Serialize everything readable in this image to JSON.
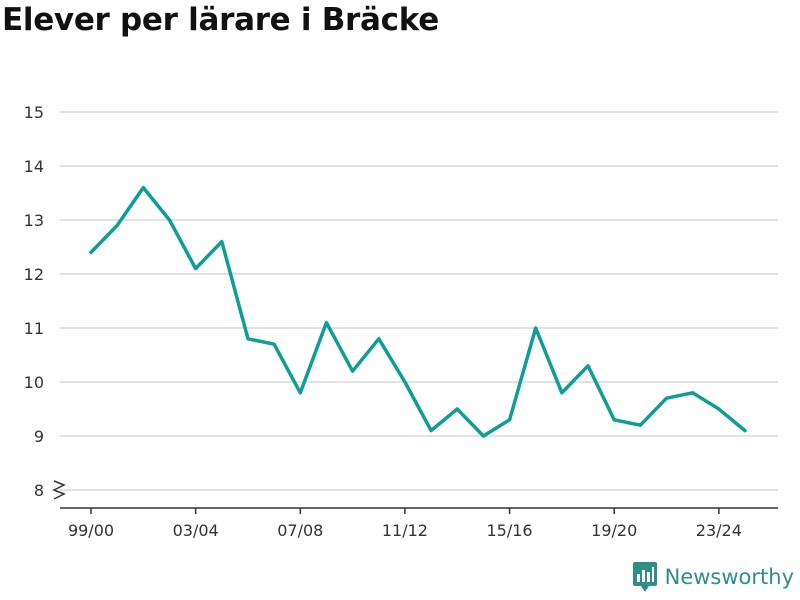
{
  "title": "Elever per lärare i Bräcke",
  "brand": {
    "name": "Newsworthy",
    "icon": "newsworthy-logo-icon",
    "color": "#2f8f86"
  },
  "chart_data": {
    "type": "line",
    "title": "Elever per lärare i Bräcke",
    "xlabel": "",
    "ylabel": "",
    "categories": [
      "99/00",
      "00/01",
      "01/02",
      "02/03",
      "03/04",
      "04/05",
      "05/06",
      "06/07",
      "07/08",
      "08/09",
      "09/10",
      "10/11",
      "11/12",
      "12/13",
      "13/14",
      "14/15",
      "15/16",
      "16/17",
      "17/18",
      "18/19",
      "19/20",
      "20/21",
      "21/22",
      "22/23",
      "23/24",
      "24/25"
    ],
    "x_tick_labels": [
      "99/00",
      "03/04",
      "07/08",
      "11/12",
      "15/16",
      "19/20",
      "23/24"
    ],
    "series": [
      {
        "values": [
          12.4,
          12.9,
          13.6,
          13.0,
          12.1,
          12.6,
          10.8,
          10.7,
          9.8,
          11.1,
          10.2,
          10.8,
          10.0,
          9.1,
          9.5,
          9.0,
          9.3,
          11.0,
          9.8,
          10.3,
          9.3,
          9.2,
          9.7,
          9.8,
          9.5,
          9.1
        ],
        "color": "#0d9e96"
      }
    ],
    "y_ticks": [
      8,
      9,
      10,
      11,
      12,
      13,
      14,
      15
    ],
    "ylim": [
      8,
      15
    ],
    "y_axis_break": true,
    "grid": true,
    "legend": "none"
  }
}
